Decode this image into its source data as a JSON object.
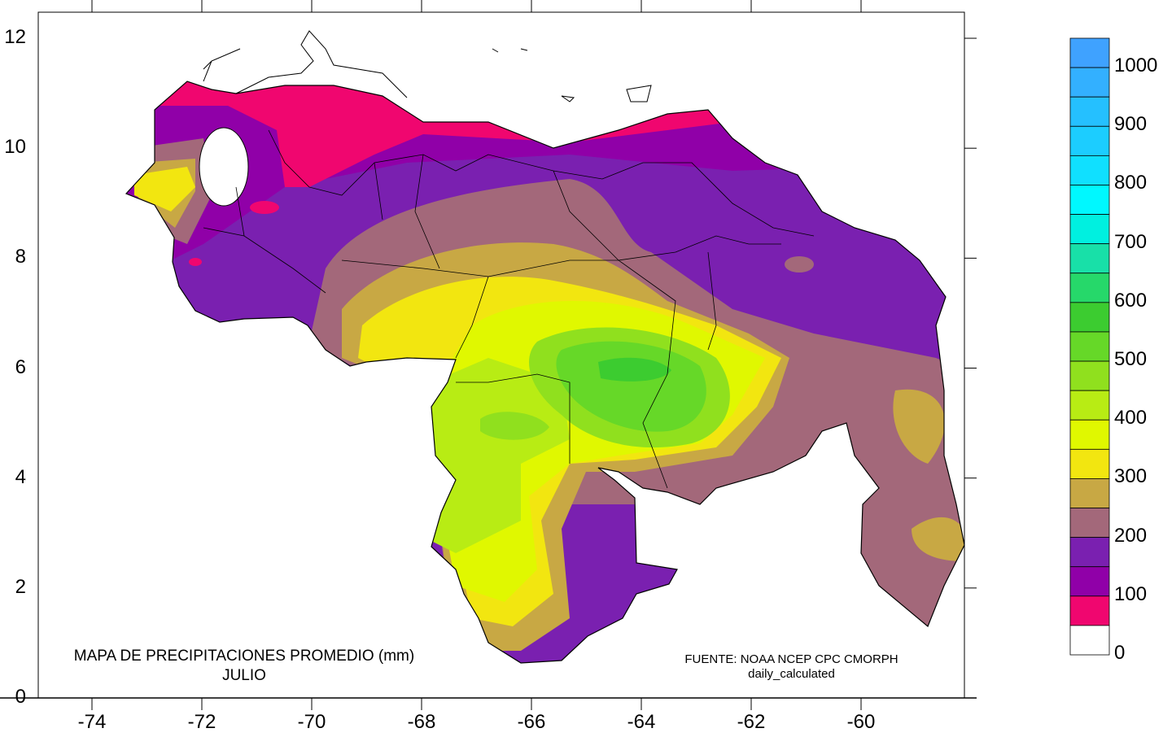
{
  "map": {
    "title": "MAPA DE PRECIPITACIONES PROMEDIO (mm)",
    "subtitle": "JULIO",
    "source_line1": "FUENTE: NOAA NCEP CPC CMORPH",
    "source_line2": "daily_calculated",
    "x_ticks": [
      "-74",
      "-72",
      "-70",
      "-68",
      "-66",
      "-64",
      "-62",
      "-60"
    ],
    "y_ticks": [
      "0",
      "2",
      "4",
      "6",
      "8",
      "10",
      "12"
    ]
  },
  "legend": {
    "labels": [
      "1000",
      "900",
      "800",
      "700",
      "600",
      "500",
      "400",
      "300",
      "200",
      "100",
      "0"
    ],
    "colors": [
      "#3fa2ff",
      "#33b0ff",
      "#25c0ff",
      "#1ccdff",
      "#10e0ff",
      "#00f8ff",
      "#00f0e0",
      "#18e0a8",
      "#26d86a",
      "#3ccc30",
      "#66d828",
      "#90e01e",
      "#b8ec14",
      "#e0f800",
      "#f2e610",
      "#c8a844",
      "#a3687a",
      "#7a20b0",
      "#9000a8",
      "#f0066f",
      "#ffffff"
    ]
  }
}
